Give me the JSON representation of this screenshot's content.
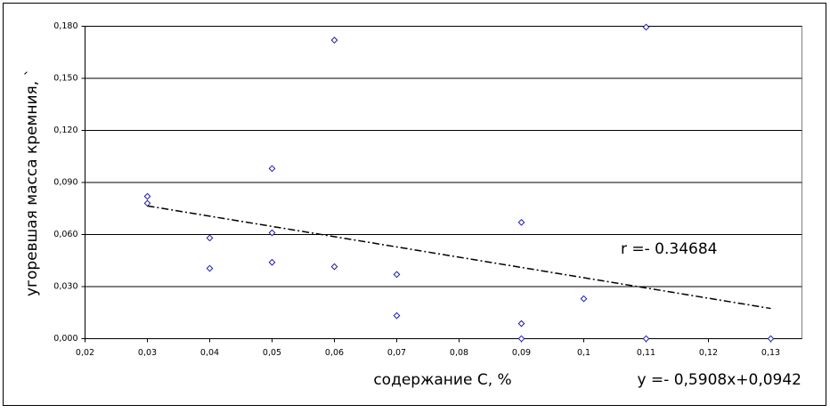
{
  "chart_data": {
    "type": "scatter",
    "xlabel": "содержание С, %",
    "ylabel": "угоревшая масса кремния, `",
    "annotations": [
      "r =- 0.34684",
      "y =- 0,5908x+0,0942"
    ],
    "series": [
      {
        "color": "#1f1fa0",
        "x": [
          0.03,
          0.03,
          0.04,
          0.04,
          0.05,
          0.05,
          0.05,
          0.06,
          0.06,
          0.07,
          0.07,
          0.09,
          0.09,
          0.09,
          0.1,
          0.11,
          0.11,
          0.13
        ],
        "values": [
          0.082,
          0.078,
          0.058,
          0.0405,
          0.098,
          0.061,
          0.044,
          0.172,
          0.0415,
          0.037,
          0.0133,
          0.067,
          0.0087,
          0,
          0.023,
          0.1795,
          0,
          0
        ]
      }
    ],
    "trendline": {
      "x": [
        0.03,
        0.13
      ],
      "values": [
        0.0765,
        0.0174
      ]
    },
    "xlim": [
      0.02,
      0.135
    ],
    "xticks": [
      {
        "value": 0.02,
        "label": "0,02"
      },
      {
        "value": 0.03,
        "label": "0,03"
      },
      {
        "value": 0.04,
        "label": "0,04"
      },
      {
        "value": 0.05,
        "label": "0,05"
      },
      {
        "value": 0.06,
        "label": "0,06"
      },
      {
        "value": 0.07,
        "label": "0,07"
      },
      {
        "value": 0.08,
        "label": "0,08"
      },
      {
        "value": 0.09,
        "label": "0,09"
      },
      {
        "value": 0.1,
        "label": "0,1"
      },
      {
        "value": 0.11,
        "label": "0,11"
      },
      {
        "value": 0.12,
        "label": "0,12"
      },
      {
        "value": 0.13,
        "label": "0,13"
      }
    ],
    "ylim": [
      0,
      0.18
    ],
    "yticks": [
      {
        "value": 0,
        "label": "0,000"
      },
      {
        "value": 0.03,
        "label": "0,030"
      },
      {
        "value": 0.06,
        "label": "0,060"
      },
      {
        "value": 0.09,
        "label": "0,090"
      },
      {
        "value": 0.12,
        "label": "0,120"
      },
      {
        "value": 0.15,
        "label": "0,150"
      },
      {
        "value": 0.18,
        "label": "0,180"
      }
    ],
    "grid": true
  }
}
